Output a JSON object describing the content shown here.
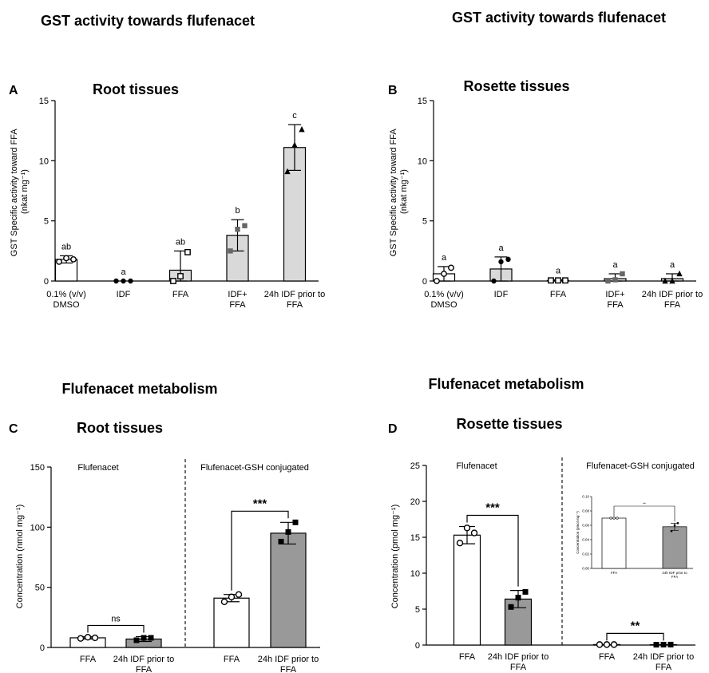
{
  "figure": {
    "titles": [
      "GST activity towards flufenacet",
      "GST activity towards flufenacet",
      "Flufenacet metabolism",
      "Flufenacet metabolism"
    ]
  },
  "chart_data": [
    {
      "id": "A",
      "type": "bar",
      "panel_letter": "A",
      "title": "Root tissues",
      "ylabel_lines": [
        "GST Specific activity toward FFA",
        "(nkat mg⁻¹)"
      ],
      "ylim": [
        0,
        15
      ],
      "yticks": [
        0,
        5,
        10,
        15
      ],
      "categories": [
        [
          "0.1% (v/v)",
          "DMSO"
        ],
        [
          "IDF"
        ],
        [
          "FFA"
        ],
        [
          "IDF+",
          "FFA"
        ],
        [
          "24h IDF prior to",
          "FFA"
        ]
      ],
      "values": [
        1.8,
        0.0,
        0.9,
        3.8,
        11.1
      ],
      "errors": [
        0.3,
        0.0,
        1.6,
        1.3,
        1.9
      ],
      "points": [
        [
          1.6,
          1.9,
          1.8
        ],
        [
          0.0,
          0.0,
          0.0
        ],
        [
          0.0,
          0.4,
          2.4
        ],
        [
          2.5,
          4.3,
          4.6
        ],
        [
          9.1,
          11.3,
          12.6
        ]
      ],
      "markers": [
        "circle",
        "dot",
        "square-open",
        "square",
        "triangle"
      ],
      "fills": [
        "#ffffff",
        "#ffffff",
        "#d9d9d9",
        "#d9d9d9",
        "#d9d9d9"
      ],
      "letters": [
        "ab",
        "a",
        "ab",
        "b",
        "c"
      ],
      "grid": false
    },
    {
      "id": "B",
      "type": "bar",
      "panel_letter": "B",
      "title": "Rosette tissues",
      "ylabel_lines": [
        "GST Specific activity toward FFA",
        "(nkat mg⁻¹)"
      ],
      "ylim": [
        0,
        15
      ],
      "yticks": [
        0,
        5,
        10,
        15
      ],
      "categories": [
        [
          "0.1% (v/v)",
          "DMSO"
        ],
        [
          "IDF"
        ],
        [
          "FFA"
        ],
        [
          "IDF+",
          "FFA"
        ],
        [
          "24h IDF prior to",
          "FFA"
        ]
      ],
      "values": [
        0.6,
        1.0,
        0.05,
        0.2,
        0.2
      ],
      "errors": [
        0.6,
        1.0,
        0.05,
        0.4,
        0.4
      ],
      "points": [
        [
          0.0,
          0.6,
          1.1
        ],
        [
          0.0,
          1.6,
          1.8
        ],
        [
          0.05,
          0.05,
          0.05
        ],
        [
          0.0,
          0.1,
          0.6
        ],
        [
          0.0,
          0.0,
          0.6
        ]
      ],
      "markers": [
        "circle",
        "dot",
        "square-open",
        "square",
        "triangle"
      ],
      "fills": [
        "#ffffff",
        "#d9d9d9",
        "#d9d9d9",
        "#d9d9d9",
        "#d9d9d9"
      ],
      "letters": [
        "a",
        "a",
        "a",
        "a",
        "a"
      ],
      "grid": false
    },
    {
      "id": "C",
      "type": "bar",
      "panel_letter": "C",
      "title": "Root tissues",
      "ylabel": "Concentration (nmol mg⁻¹)",
      "ylim": [
        0,
        150
      ],
      "yticks": [
        0,
        50,
        100,
        150
      ],
      "groups": [
        "Flufenacet",
        "Flufenacet-GSH conjugated"
      ],
      "categories": [
        [
          "FFA"
        ],
        [
          "24h IDF prior to",
          "FFA"
        ],
        [
          "FFA"
        ],
        [
          "24h IDF prior to",
          "FFA"
        ]
      ],
      "values": [
        8,
        7,
        41,
        95
      ],
      "errors": [
        1,
        2,
        3,
        9
      ],
      "points": [
        [
          7.5,
          8.5,
          8
        ],
        [
          6,
          8,
          8
        ],
        [
          38,
          42,
          44
        ],
        [
          88,
          96,
          104
        ]
      ],
      "markers": [
        "circle",
        "square",
        "circle",
        "square"
      ],
      "fills": [
        "#ffffff",
        "#999999",
        "#ffffff",
        "#999999"
      ],
      "significance": [
        "ns",
        "***"
      ],
      "grid": false
    },
    {
      "id": "D",
      "type": "bar",
      "panel_letter": "D",
      "title": "Rosette tissues",
      "ylabel": "Concentration (pmol mg⁻¹)",
      "ylim": [
        0,
        25
      ],
      "yticks": [
        0,
        5,
        10,
        15,
        20,
        25
      ],
      "groups": [
        "Flufenacet",
        "Flufenacet-GSH conjugated"
      ],
      "categories": [
        [
          "FFA"
        ],
        [
          "24h IDF prior to",
          "FFA"
        ],
        [
          "FFA"
        ],
        [
          "24h IDF prior to",
          "FFA"
        ]
      ],
      "values": [
        15.3,
        6.4,
        0.07,
        0.06
      ],
      "errors": [
        1.2,
        1.2,
        0.0,
        0.005
      ],
      "points": [
        [
          14.2,
          16.3,
          15.6
        ],
        [
          5.3,
          6.6,
          7.4
        ],
        [
          0.07,
          0.07,
          0.07
        ],
        [
          0.05,
          0.06,
          0.065
        ]
      ],
      "markers": [
        "circle",
        "square",
        "circle",
        "square"
      ],
      "fills": [
        "#ffffff",
        "#999999",
        "#ffffff",
        "#999999"
      ],
      "significance": [
        "***",
        "**"
      ],
      "grid": false,
      "inset": {
        "type": "bar",
        "ylabel": "Concentration (pmol mg⁻¹)",
        "ylim": [
          0,
          0.1
        ],
        "yticks_labels": [
          "0.00",
          "0.02",
          "0.04",
          "0.06",
          "0.08",
          "0.10"
        ],
        "categories": [
          [
            "FFA"
          ],
          [
            "24h IDF prior to",
            "FFA"
          ]
        ],
        "values": [
          0.07,
          0.058
        ],
        "errors": [
          0.0,
          0.005
        ],
        "points": [
          [
            0.07,
            0.07,
            0.07
          ],
          [
            0.052,
            0.06,
            0.063
          ]
        ],
        "fills": [
          "#ffffff",
          "#999999"
        ],
        "significance": "**"
      }
    }
  ]
}
